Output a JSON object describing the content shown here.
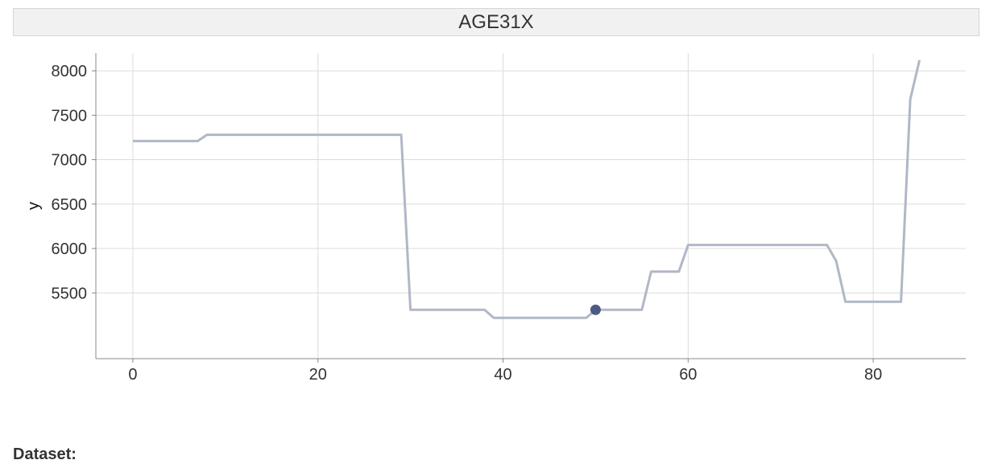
{
  "header": {
    "title": "AGE31X"
  },
  "footer": {
    "dataset_label": "Dataset:"
  },
  "colors": {
    "line": "#b0b7c6",
    "highlight": "#4a5a82",
    "grid": "#dcdcdc",
    "axis": "#888888"
  },
  "chart_data": {
    "type": "line",
    "title": "AGE31X",
    "xlabel": "",
    "ylabel": "y",
    "xlim": [
      -4,
      90
    ],
    "ylim": [
      4760,
      8200
    ],
    "x_ticks": [
      0,
      20,
      40,
      60,
      80
    ],
    "y_ticks": [
      5500,
      6000,
      6500,
      7000,
      7500,
      8000
    ],
    "grid": true,
    "series": [
      {
        "points": [
          [
            0,
            7210
          ],
          [
            7,
            7210
          ],
          [
            8,
            7280
          ],
          [
            29,
            7280
          ],
          [
            30,
            5310
          ],
          [
            38,
            5310
          ],
          [
            39,
            5220
          ],
          [
            49,
            5220
          ],
          [
            50,
            5310
          ],
          [
            55,
            5310
          ],
          [
            56,
            5740
          ],
          [
            59,
            5740
          ],
          [
            60,
            6040
          ],
          [
            75,
            6040
          ],
          [
            76,
            5860
          ],
          [
            77,
            5400
          ],
          [
            83,
            5400
          ],
          [
            84,
            7680
          ],
          [
            85,
            8120
          ]
        ]
      }
    ],
    "highlight_point": {
      "x": 50,
      "y": 5310
    }
  }
}
